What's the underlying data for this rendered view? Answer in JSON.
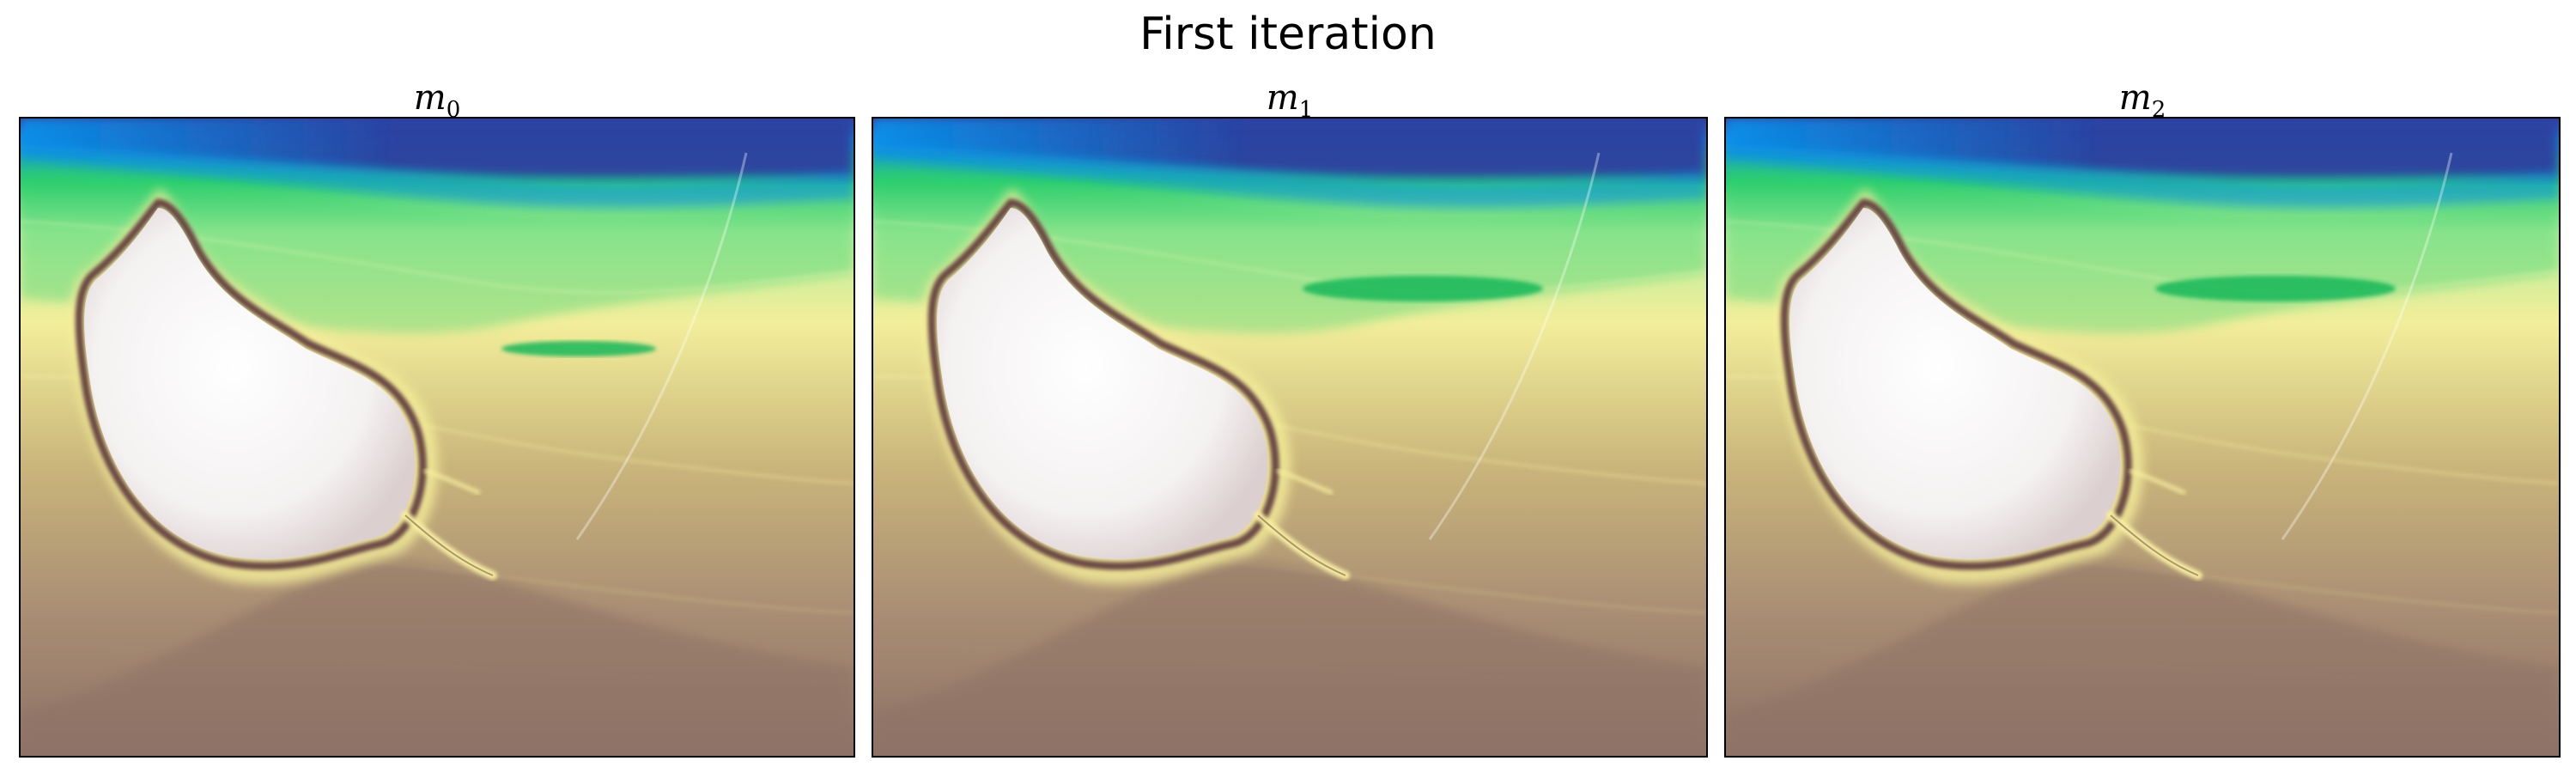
{
  "figure": {
    "title": "First iteration",
    "panels": [
      {
        "symbol": "m",
        "subscript": "0",
        "variant": 0
      },
      {
        "symbol": "m",
        "subscript": "1",
        "variant": 1
      },
      {
        "symbol": "m",
        "subscript": "2",
        "variant": 2
      }
    ]
  },
  "colors": {
    "deep_blue": "#2d3f9e",
    "blue": "#0a8fe8",
    "green": "#2ecf6e",
    "light_green": "#b8ef9c",
    "yellow": "#f2ee9a",
    "tan": "#c9b47a",
    "brown": "#8e7266",
    "salt_white": "#f4f1f1",
    "salt_rim": "#6b4a44"
  }
}
